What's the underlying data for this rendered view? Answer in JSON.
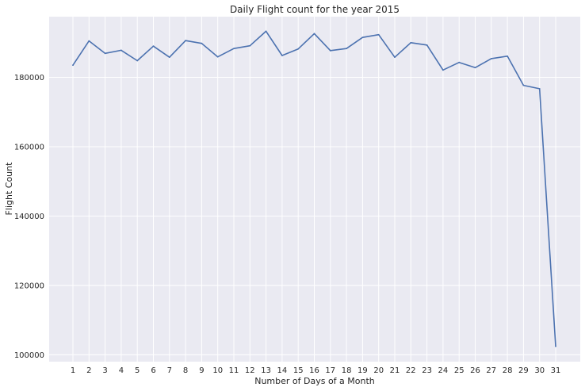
{
  "chart_data": {
    "type": "line",
    "title": "Daily Flight count for the year 2015",
    "xlabel": "Number of Days of a Month",
    "ylabel": "Flight Count",
    "categories": [
      "1",
      "2",
      "3",
      "4",
      "5",
      "6",
      "7",
      "8",
      "9",
      "10",
      "11",
      "12",
      "13",
      "14",
      "15",
      "16",
      "17",
      "18",
      "19",
      "20",
      "21",
      "22",
      "23",
      "24",
      "25",
      "26",
      "27",
      "28",
      "29",
      "30",
      "31"
    ],
    "series": [
      {
        "values": [
          183500,
          190500,
          186900,
          187800,
          184800,
          189000,
          185800,
          190600,
          189800,
          185900,
          188300,
          189100,
          193300,
          186300,
          188200,
          192600,
          187700,
          188300,
          191500,
          192300,
          185800,
          190000,
          189300,
          182100,
          184300,
          182800,
          185400,
          186100,
          177700,
          176700,
          102400
        ]
      }
    ],
    "ylim": [
      98000,
      197500
    ],
    "yticks": [
      100000,
      120000,
      140000,
      160000,
      180000
    ],
    "grid": true,
    "color": "#4c72b0",
    "background": "#eaeaf2"
  }
}
